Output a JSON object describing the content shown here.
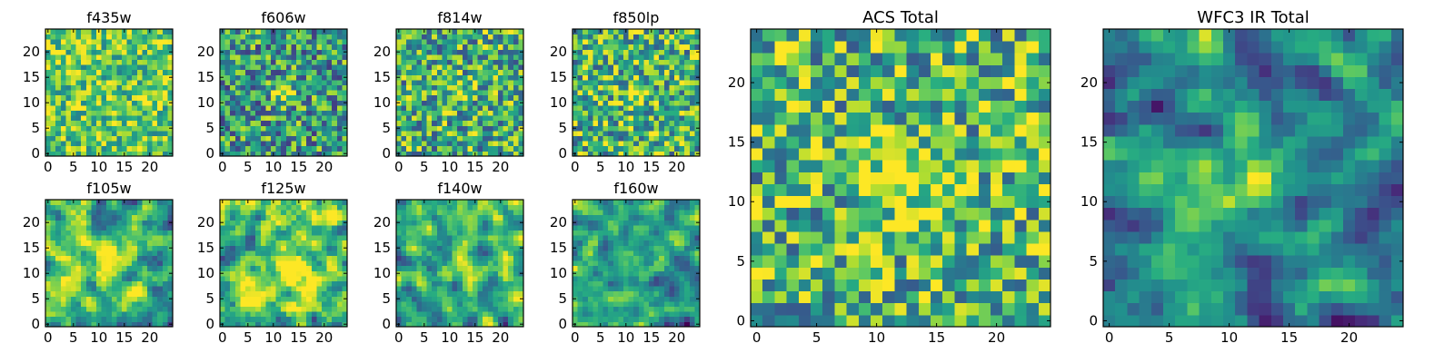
{
  "figure": {
    "colormap": "viridis"
  },
  "chart_data": [
    {
      "type": "heatmap",
      "title": "f435w",
      "size": 25,
      "seed": 11,
      "mean": 0.74,
      "spread": 0.3,
      "smooth": 0,
      "blob_x": 12,
      "blob_y": 12,
      "blob_r": 0,
      "blob_amp": 0,
      "xticks": [
        "0",
        "5",
        "10",
        "15",
        "20"
      ],
      "yticks": [
        "0",
        "5",
        "10",
        "15",
        "20"
      ]
    },
    {
      "type": "heatmap",
      "title": "f606w",
      "size": 25,
      "seed": 23,
      "mean": 0.55,
      "spread": 0.38,
      "smooth": 0,
      "blob_x": 12,
      "blob_y": 12,
      "blob_r": 1.6,
      "blob_amp": 0.45,
      "xticks": [
        "0",
        "5",
        "10",
        "15",
        "20"
      ],
      "yticks": [
        "0",
        "5",
        "10",
        "15",
        "20"
      ]
    },
    {
      "type": "heatmap",
      "title": "f814w",
      "size": 25,
      "seed": 37,
      "mean": 0.62,
      "spread": 0.38,
      "smooth": 0,
      "blob_x": 12,
      "blob_y": 12,
      "blob_r": 1.6,
      "blob_amp": 0.25,
      "xticks": [
        "0",
        "5",
        "10",
        "15",
        "20"
      ],
      "yticks": [
        "0",
        "5",
        "10",
        "15",
        "20"
      ]
    },
    {
      "type": "heatmap",
      "title": "f850lp",
      "size": 25,
      "seed": 41,
      "mean": 0.65,
      "spread": 0.38,
      "smooth": 0,
      "blob_x": 12,
      "blob_y": 12,
      "blob_r": 1.6,
      "blob_amp": 0.3,
      "xticks": [
        "0",
        "5",
        "10",
        "15",
        "20"
      ],
      "yticks": [
        "0",
        "5",
        "10",
        "15",
        "20"
      ]
    },
    {
      "type": "heatmap",
      "title": "f105w",
      "size": 25,
      "seed": 53,
      "mean": 0.66,
      "spread": 0.5,
      "smooth": 1,
      "blob_x": 12,
      "blob_y": 12,
      "blob_r": 2.0,
      "blob_amp": 0.4,
      "xticks": [
        "0",
        "5",
        "10",
        "15",
        "20"
      ],
      "yticks": [
        "0",
        "5",
        "10",
        "15",
        "20"
      ]
    },
    {
      "type": "heatmap",
      "title": "f125w",
      "size": 25,
      "seed": 67,
      "mean": 0.7,
      "spread": 0.5,
      "smooth": 1,
      "blob_x": 14,
      "blob_y": 10,
      "blob_r": 3.0,
      "blob_amp": 0.3,
      "xticks": [
        "0",
        "5",
        "10",
        "15",
        "20"
      ],
      "yticks": [
        "0",
        "5",
        "10",
        "15",
        "20"
      ]
    },
    {
      "type": "heatmap",
      "title": "f140w",
      "size": 25,
      "seed": 79,
      "mean": 0.6,
      "spread": 0.5,
      "smooth": 1,
      "blob_x": 13,
      "blob_y": 12,
      "blob_r": 2.0,
      "blob_amp": 0.3,
      "xticks": [
        "0",
        "5",
        "10",
        "15",
        "20"
      ],
      "yticks": [
        "0",
        "5",
        "10",
        "15",
        "20"
      ]
    },
    {
      "type": "heatmap",
      "title": "f160w",
      "size": 25,
      "seed": 83,
      "mean": 0.48,
      "spread": 0.5,
      "smooth": 1,
      "blob_x": 13,
      "blob_y": 11,
      "blob_r": 1.6,
      "blob_amp": 0.5,
      "xticks": [
        "0",
        "5",
        "10",
        "15",
        "20"
      ],
      "yticks": [
        "0",
        "5",
        "10",
        "15",
        "20"
      ]
    },
    {
      "type": "heatmap",
      "title": "ACS Total",
      "size": 25,
      "seed": 97,
      "mean": 0.66,
      "spread": 0.38,
      "smooth": 0,
      "blob_x": 12,
      "blob_y": 12,
      "blob_r": 2.0,
      "blob_amp": 0.4,
      "xticks": [
        "0",
        "5",
        "10",
        "15",
        "20"
      ],
      "yticks": [
        "0",
        "5",
        "10",
        "15",
        "20"
      ]
    },
    {
      "type": "heatmap",
      "title": "WFC3 IR Total",
      "size": 25,
      "seed": 101,
      "mean": 0.5,
      "spread": 0.45,
      "smooth": 1,
      "blob_x": 12,
      "blob_y": 12,
      "blob_r": 2.2,
      "blob_amp": 0.5,
      "xticks": [
        "0",
        "5",
        "10",
        "15",
        "20"
      ],
      "yticks": [
        "0",
        "5",
        "10",
        "15",
        "20"
      ]
    }
  ]
}
